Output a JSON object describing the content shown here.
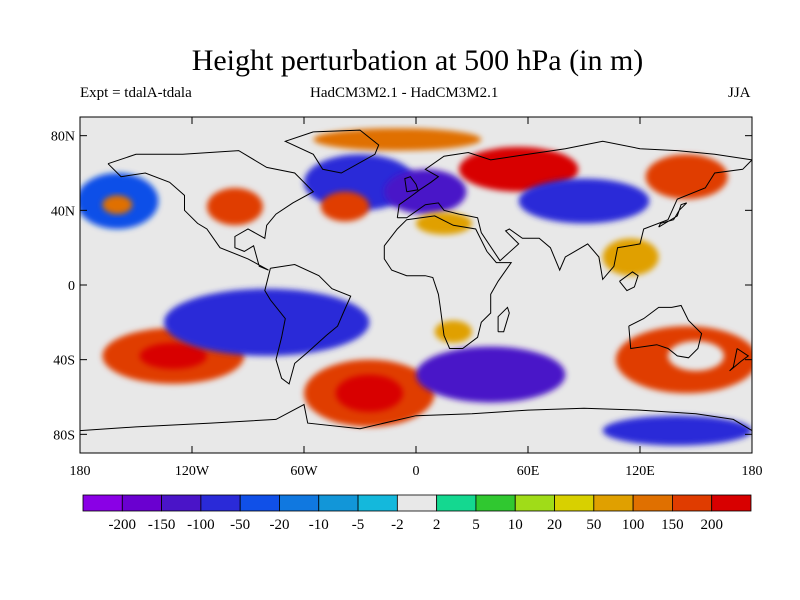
{
  "header": {
    "title": "Height perturbation at 500 hPa (in m)",
    "left": "Expt = tdalA-tdala",
    "center": "HadCM3M2.1 - HadCM3M2.1",
    "right": "JJA"
  },
  "map": {
    "lat_ticks": [
      "80N",
      "40N",
      "0",
      "40S",
      "80S"
    ],
    "lon_ticks": [
      "180",
      "120W",
      "60W",
      "0",
      "60E",
      "120E",
      "180"
    ],
    "lat_values": [
      80,
      40,
      0,
      -40,
      -80
    ],
    "lon_values": [
      -180,
      -120,
      -60,
      0,
      60,
      120,
      180
    ],
    "lat_range": [
      -90,
      90
    ],
    "lon_range": [
      -180,
      180
    ],
    "background_color": "#e8e8e8",
    "fields": [
      {
        "name": "blob-arctic-pos",
        "lon": -10,
        "lat": 78,
        "rx": 45,
        "ry": 6,
        "level": 6
      },
      {
        "name": "blob-natl-neg",
        "lon": -30,
        "lat": 55,
        "rx": 30,
        "ry": 15,
        "level": -5
      },
      {
        "name": "blob-europe-neg",
        "lon": 5,
        "lat": 50,
        "rx": 22,
        "ry": 12,
        "level": -6
      },
      {
        "name": "blob-siberia-pos",
        "lon": 55,
        "lat": 62,
        "rx": 32,
        "ry": 12,
        "level": 8
      },
      {
        "name": "blob-asia-neg",
        "lon": 90,
        "lat": 45,
        "rx": 35,
        "ry": 12,
        "level": -5
      },
      {
        "name": "blob-easia-pos",
        "lon": 145,
        "lat": 58,
        "rx": 22,
        "ry": 12,
        "level": 7
      },
      {
        "name": "blob-npac-neg",
        "lon": -160,
        "lat": 45,
        "rx": 22,
        "ry": 15,
        "level": -4
      },
      {
        "name": "blob-npac-pos",
        "lon": -160,
        "lat": 43,
        "rx": 8,
        "ry": 5,
        "level": 6
      },
      {
        "name": "blob-nam-pos",
        "lon": -97,
        "lat": 42,
        "rx": 15,
        "ry": 10,
        "level": 7
      },
      {
        "name": "blob-atl-pos",
        "lon": -38,
        "lat": 42,
        "rx": 13,
        "ry": 8,
        "level": 7
      },
      {
        "name": "blob-med-pos",
        "lon": 15,
        "lat": 33,
        "rx": 15,
        "ry": 6,
        "level": 5
      },
      {
        "name": "blob-india-pos",
        "lon": 115,
        "lat": 15,
        "rx": 15,
        "ry": 10,
        "level": 5
      },
      {
        "name": "blob-spac-pos",
        "lon": -130,
        "lat": -38,
        "rx": 38,
        "ry": 15,
        "level": 7
      },
      {
        "name": "blob-spac-center",
        "lon": -130,
        "lat": -38,
        "rx": 18,
        "ry": 7,
        "level": 8
      },
      {
        "name": "blob-trop-neg",
        "lon": -80,
        "lat": -20,
        "rx": 55,
        "ry": 18,
        "level": -5
      },
      {
        "name": "blob-satl-pos",
        "lon": -25,
        "lat": -58,
        "rx": 35,
        "ry": 18,
        "level": 7
      },
      {
        "name": "blob-satl-center",
        "lon": -25,
        "lat": -58,
        "rx": 18,
        "ry": 10,
        "level": 8
      },
      {
        "name": "blob-sio-neg",
        "lon": 40,
        "lat": -48,
        "rx": 40,
        "ry": 15,
        "level": -6
      },
      {
        "name": "blob-aus-pos",
        "lon": 145,
        "lat": -40,
        "rx": 38,
        "ry": 18,
        "level": 7
      },
      {
        "name": "blob-aus-center",
        "lon": 150,
        "lat": -38,
        "rx": 15,
        "ry": 8,
        "level": 9
      },
      {
        "name": "blob-ant-neg",
        "lon": 140,
        "lat": -78,
        "rx": 40,
        "ry": 8,
        "level": -5
      },
      {
        "name": "blob-africa-pos",
        "lon": 20,
        "lat": -25,
        "rx": 10,
        "ry": 6,
        "level": 5
      }
    ]
  },
  "colorbar": {
    "colors": [
      "#8a00e6",
      "#6a00d0",
      "#4a14c8",
      "#2a2ad8",
      "#1050e8",
      "#1078e0",
      "#1296d8",
      "#14b8dc",
      "#e8e8e8",
      "#14d890",
      "#30c830",
      "#a0dc18",
      "#d8d000",
      "#e0a000",
      "#e07000",
      "#e03c00",
      "#d80000"
    ],
    "labels": [
      "-200",
      "-150",
      "-100",
      "-50",
      "-20",
      "-10",
      "-5",
      "-2",
      "2",
      "5",
      "10",
      "20",
      "50",
      "100",
      "150",
      "200"
    ]
  }
}
